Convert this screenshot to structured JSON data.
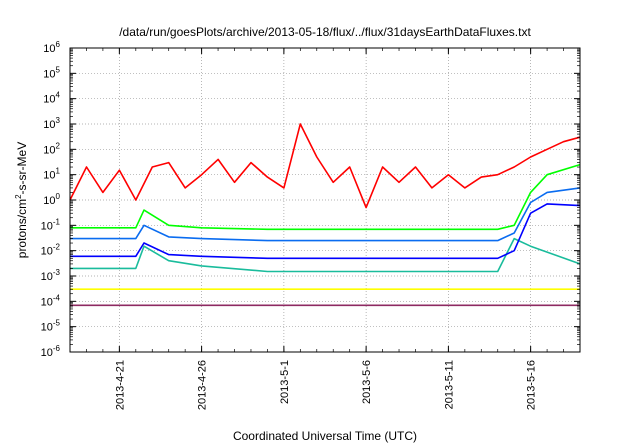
{
  "chart_data": {
    "type": "line",
    "title": "/data/run/goesPlots/archive/2013-05-18/flux/../flux/31daysEarthDataFluxes.txt",
    "xlabel": "Coordinated Universal Time (UTC)",
    "ylabel": {
      "base": "protons/cm",
      "sup": "2",
      "rest": "-s-sr-MeV"
    },
    "yscale": "log",
    "ylim_exp": [
      -6,
      6
    ],
    "xlim": [
      "2013-04-18",
      "2013-05-19"
    ],
    "grid": true,
    "yticks": [
      {
        "base": "10",
        "exp": "-6",
        "value": 1e-06
      },
      {
        "base": "10",
        "exp": "-5",
        "value": 1e-05
      },
      {
        "base": "10",
        "exp": "-4",
        "value": 0.0001
      },
      {
        "base": "10",
        "exp": "-3",
        "value": 0.001
      },
      {
        "base": "10",
        "exp": "-2",
        "value": 0.01
      },
      {
        "base": "10",
        "exp": "-1",
        "value": 0.1
      },
      {
        "base": "10",
        "exp": "0",
        "value": 1
      },
      {
        "base": "10",
        "exp": "1",
        "value": 10
      },
      {
        "base": "10",
        "exp": "2",
        "value": 100
      },
      {
        "base": "10",
        "exp": "3",
        "value": 1000
      },
      {
        "base": "10",
        "exp": "4",
        "value": 10000
      },
      {
        "base": "10",
        "exp": "5",
        "value": 100000
      },
      {
        "base": "10",
        "exp": "6",
        "value": 1000000
      }
    ],
    "xticks": [
      "2013-4-21",
      "2013-4-26",
      "2013-5-1",
      "2013-5-6",
      "2013-5-11",
      "2013-5-16"
    ],
    "series": [
      {
        "color": "#8e2a62",
        "x": [
          "2013-04-18",
          "2013-04-22",
          "2013-04-26",
          "2013-04-30",
          "2013-05-04",
          "2013-05-08",
          "2013-05-12",
          "2013-05-16",
          "2013-05-19"
        ],
        "y": [
          7e-05,
          7e-05,
          7e-05,
          7e-05,
          7e-05,
          7e-05,
          7e-05,
          7e-05,
          7e-05
        ]
      },
      {
        "color": "#ffff00",
        "x": [
          "2013-04-18",
          "2013-04-22",
          "2013-04-26",
          "2013-04-30",
          "2013-05-04",
          "2013-05-08",
          "2013-05-12",
          "2013-05-16",
          "2013-05-19"
        ],
        "y": [
          0.0003,
          0.0003,
          0.0003,
          0.0003,
          0.0003,
          0.0003,
          0.0003,
          0.0003,
          0.0003
        ]
      },
      {
        "color": "#1abc9c",
        "x": [
          "2013-04-18",
          "2013-04-22",
          "2013-04-22.5",
          "2013-04-24",
          "2013-04-26",
          "2013-04-30",
          "2013-05-04",
          "2013-05-08",
          "2013-05-12",
          "2013-05-14",
          "2013-05-15",
          "2013-05-16",
          "2013-05-19"
        ],
        "y": [
          0.002,
          0.002,
          0.015,
          0.004,
          0.0025,
          0.0015,
          0.0015,
          0.0015,
          0.0015,
          0.0015,
          0.03,
          0.015,
          0.003
        ]
      },
      {
        "color": "#00ff00",
        "x": [
          "2013-04-18",
          "2013-04-22",
          "2013-04-22.5",
          "2013-04-24",
          "2013-04-26",
          "2013-04-30",
          "2013-05-04",
          "2013-05-08",
          "2013-05-12",
          "2013-05-14",
          "2013-05-15",
          "2013-05-16",
          "2013-05-17",
          "2013-05-19"
        ],
        "y": [
          0.08,
          0.08,
          0.4,
          0.1,
          0.08,
          0.07,
          0.07,
          0.07,
          0.07,
          0.07,
          0.1,
          2,
          10,
          25
        ]
      },
      {
        "color": "#0a6cf0",
        "x": [
          "2013-04-18",
          "2013-04-22",
          "2013-04-22.5",
          "2013-04-24",
          "2013-04-26",
          "2013-04-30",
          "2013-05-04",
          "2013-05-08",
          "2013-05-12",
          "2013-05-14",
          "2013-05-15",
          "2013-05-16",
          "2013-05-17",
          "2013-05-19"
        ],
        "y": [
          0.03,
          0.03,
          0.1,
          0.035,
          0.03,
          0.025,
          0.025,
          0.025,
          0.025,
          0.025,
          0.05,
          0.8,
          2,
          3
        ]
      },
      {
        "color": "#0000ff",
        "x": [
          "2013-04-18",
          "2013-04-22",
          "2013-04-22.5",
          "2013-04-24",
          "2013-04-26",
          "2013-04-30",
          "2013-05-04",
          "2013-05-08",
          "2013-05-12",
          "2013-05-14",
          "2013-05-15",
          "2013-05-16",
          "2013-05-17",
          "2013-05-19"
        ],
        "y": [
          0.006,
          0.006,
          0.02,
          0.007,
          0.006,
          0.005,
          0.005,
          0.005,
          0.005,
          0.005,
          0.01,
          0.3,
          0.7,
          0.6
        ]
      },
      {
        "color": "#ff0000",
        "x": [
          "2013-04-18",
          "2013-04-19",
          "2013-04-20",
          "2013-04-21",
          "2013-04-22",
          "2013-04-23",
          "2013-04-24",
          "2013-04-25",
          "2013-04-26",
          "2013-04-27",
          "2013-04-28",
          "2013-04-29",
          "2013-04-30",
          "2013-05-01",
          "2013-05-02",
          "2013-05-03",
          "2013-05-04",
          "2013-05-05",
          "2013-05-06",
          "2013-05-07",
          "2013-05-08",
          "2013-05-09",
          "2013-05-10",
          "2013-05-11",
          "2013-05-12",
          "2013-05-13",
          "2013-05-14",
          "2013-05-15",
          "2013-05-16",
          "2013-05-17",
          "2013-05-18",
          "2013-05-19"
        ],
        "y": [
          1,
          20,
          2,
          15,
          1,
          20,
          30,
          3,
          10,
          40,
          5,
          30,
          8,
          3,
          1000,
          50,
          5,
          20,
          0.5,
          20,
          5,
          20,
          3,
          10,
          3,
          8,
          10,
          20,
          50,
          100,
          200,
          300
        ]
      }
    ]
  }
}
